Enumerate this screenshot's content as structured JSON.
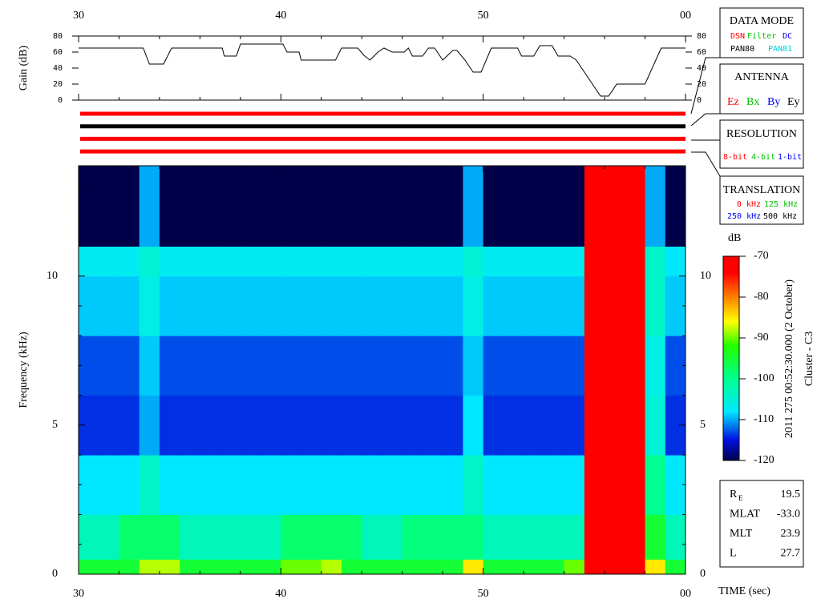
{
  "chart_data": [
    {
      "type": "line",
      "ylabel": "Gain (dB)",
      "color": "#000000",
      "x": [
        30,
        33.2,
        33.5,
        34.2,
        34.6,
        37.1,
        37.2,
        37.8,
        38,
        40.1,
        40.3,
        40.9,
        41,
        42.7,
        43,
        43.8,
        44.1,
        44.4,
        44.8,
        45.1,
        45.5,
        46.1,
        46.3,
        46.5,
        47,
        47.3,
        47.6,
        48,
        48.5,
        48.7,
        49.1,
        49.5,
        49.9,
        50.4,
        51.7,
        51.9,
        52.5,
        52.8,
        53.4,
        53.7,
        54.3,
        54.6,
        55.8,
        56.2,
        56.6,
        58,
        58.8,
        60
      ],
      "values": [
        65,
        65,
        45,
        45,
        65,
        65,
        55,
        55,
        70,
        70,
        60,
        60,
        50,
        50,
        65,
        65,
        56,
        50,
        60,
        65,
        60,
        60,
        65,
        55,
        55,
        65,
        65,
        50,
        62,
        62,
        50,
        35,
        35,
        65,
        65,
        55,
        55,
        68,
        68,
        55,
        55,
        50,
        5,
        5,
        20,
        20,
        65,
        65
      ],
      "xlim": [
        30,
        60
      ],
      "ylim": [
        0,
        80
      ],
      "yticks": [
        0,
        20,
        40,
        60,
        80
      ],
      "xticks": [
        30,
        40,
        50,
        {
          "value": 60,
          "label": "00"
        }
      ],
      "xminorticks": [
        32,
        34,
        36,
        38,
        42,
        44,
        46,
        48,
        52,
        54,
        56,
        58
      ]
    },
    {
      "type": "heatmap",
      "ylabel": "Frequency (kHz)",
      "xlabel": "TIME (sec)",
      "x_edges": [
        30,
        31,
        32,
        33,
        34,
        35,
        36,
        37,
        38,
        39,
        40,
        41,
        42,
        43,
        44,
        45,
        46,
        47,
        48,
        49,
        50,
        51,
        52,
        53,
        54,
        55,
        56,
        57,
        58,
        59,
        60
      ],
      "y_edges": [
        0,
        0.5,
        2,
        4,
        6,
        8,
        10,
        11,
        13.7
      ],
      "z": [
        [
          -95,
          -95,
          -95,
          -88,
          -88,
          -95,
          -95,
          -95,
          -95,
          -95,
          -90,
          -90,
          -88,
          -95,
          -95,
          -95,
          -95,
          -95,
          -95,
          -85,
          -95,
          -95,
          -95,
          -95,
          -90,
          -70,
          -70,
          -70,
          -85,
          -95
        ],
        [
          -103,
          -103,
          -98,
          -98,
          -98,
          -103,
          -103,
          -103,
          -103,
          -103,
          -98,
          -98,
          -98,
          -98,
          -103,
          -103,
          -99,
          -99,
          -99,
          -99,
          -103,
          -103,
          -103,
          -103,
          -103,
          -70,
          -70,
          -70,
          -95,
          -103
        ],
        [
          -108,
          -108,
          -108,
          -104,
          -108,
          -108,
          -108,
          -108,
          -108,
          -108,
          -108,
          -108,
          -108,
          -108,
          -108,
          -108,
          -108,
          -108,
          -108,
          -104,
          -108,
          -108,
          -108,
          -108,
          -108,
          -70,
          -70,
          -70,
          -100,
          -108
        ],
        [
          -114,
          -114,
          -114,
          -110,
          -114,
          -114,
          -114,
          -114,
          -114,
          -114,
          -114,
          -114,
          -114,
          -114,
          -114,
          -114,
          -114,
          -114,
          -114,
          -108,
          -114,
          -114,
          -114,
          -114,
          -114,
          -72,
          -72,
          -72,
          -105,
          -114
        ],
        [
          -113,
          -113,
          -113,
          -109,
          -113,
          -113,
          -113,
          -113,
          -113,
          -113,
          -113,
          -113,
          -113,
          -113,
          -113,
          -113,
          -113,
          -113,
          -113,
          -109,
          -113,
          -113,
          -113,
          -113,
          -113,
          -72,
          -72,
          -72,
          -106,
          -113
        ],
        [
          -109,
          -109,
          -109,
          -106,
          -109,
          -109,
          -109,
          -109,
          -109,
          -109,
          -109,
          -109,
          -109,
          -109,
          -109,
          -109,
          -109,
          -109,
          -109,
          -106,
          -109,
          -109,
          -109,
          -109,
          -109,
          -72,
          -72,
          -72,
          -104,
          -109
        ],
        [
          -107,
          -107,
          -107,
          -105,
          -107,
          -107,
          -107,
          -107,
          -107,
          -107,
          -107,
          -107,
          -107,
          -107,
          -107,
          -107,
          -107,
          -107,
          -107,
          -105,
          -107,
          -107,
          -107,
          -107,
          -107,
          -72,
          -72,
          -72,
          -104,
          -108
        ],
        [
          -120,
          -120,
          -120,
          -110,
          -120,
          -120,
          -120,
          -120,
          -120,
          -120,
          -120,
          -120,
          -120,
          -120,
          -120,
          -120,
          -120,
          -120,
          -120,
          -110,
          -120,
          -120,
          -120,
          -120,
          -120,
          -72,
          -72,
          -72,
          -110,
          -120
        ]
      ],
      "xlim": [
        30,
        60
      ],
      "ylim": [
        0,
        13.7
      ],
      "xticks": [
        30,
        40,
        50,
        {
          "value": 60,
          "label": "00"
        }
      ],
      "xminorticks": [
        32,
        34,
        36,
        38,
        42,
        44,
        46,
        48,
        52,
        54,
        56,
        58
      ],
      "yticks": [
        0,
        5,
        10
      ],
      "yminorticks": [
        1,
        2,
        3,
        4,
        6,
        7,
        8,
        9,
        11,
        12,
        13
      ],
      "colorbar": {
        "label": "dB",
        "clim": [
          -120,
          -70
        ],
        "ticks": [
          -120,
          -110,
          -100,
          -90,
          -80,
          -70
        ]
      },
      "colormap": [
        {
          "value": -120,
          "color": "#00004a"
        },
        {
          "value": -115,
          "color": "#0010e0"
        },
        {
          "value": -108,
          "color": "#00e8ff"
        },
        {
          "value": -100,
          "color": "#00ff90"
        },
        {
          "value": -92,
          "color": "#20ff00"
        },
        {
          "value": -86,
          "color": "#ffff00"
        },
        {
          "value": -80,
          "color": "#ff8000"
        },
        {
          "value": -74,
          "color": "#ff0000"
        },
        {
          "value": -70,
          "color": "#ff0000"
        }
      ]
    }
  ],
  "indicators": [
    "#ff0000",
    "#000000",
    "#ff0000",
    "#ff0000"
  ],
  "panels": {
    "data_mode": {
      "title": "DATA MODE",
      "items": [
        "DSN",
        "Filter",
        "DC",
        "PAN80",
        "PAN81"
      ]
    },
    "antenna": {
      "title": "ANTENNA",
      "items": [
        "Ez",
        "Bx",
        "By",
        "Ey"
      ]
    },
    "resolution": {
      "title": "RESOLUTION",
      "items": [
        "8-bit",
        "4-bit",
        "1-bit"
      ]
    },
    "translation": {
      "title": "TRANSLATION",
      "items": [
        "0 kHz",
        "125 kHz",
        "250 kHz",
        "500 kHz"
      ]
    }
  },
  "caption": {
    "line1": "2011 275 00:52:30.000 (2 October)",
    "line2": "Cluster - C3"
  },
  "info": [
    {
      "label": "R",
      "sub": "E",
      "value": "19.5"
    },
    {
      "label": "MLAT",
      "value": "-33.0"
    },
    {
      "label": "MLT",
      "value": "23.9"
    },
    {
      "label": "L",
      "value": "27.7"
    }
  ]
}
